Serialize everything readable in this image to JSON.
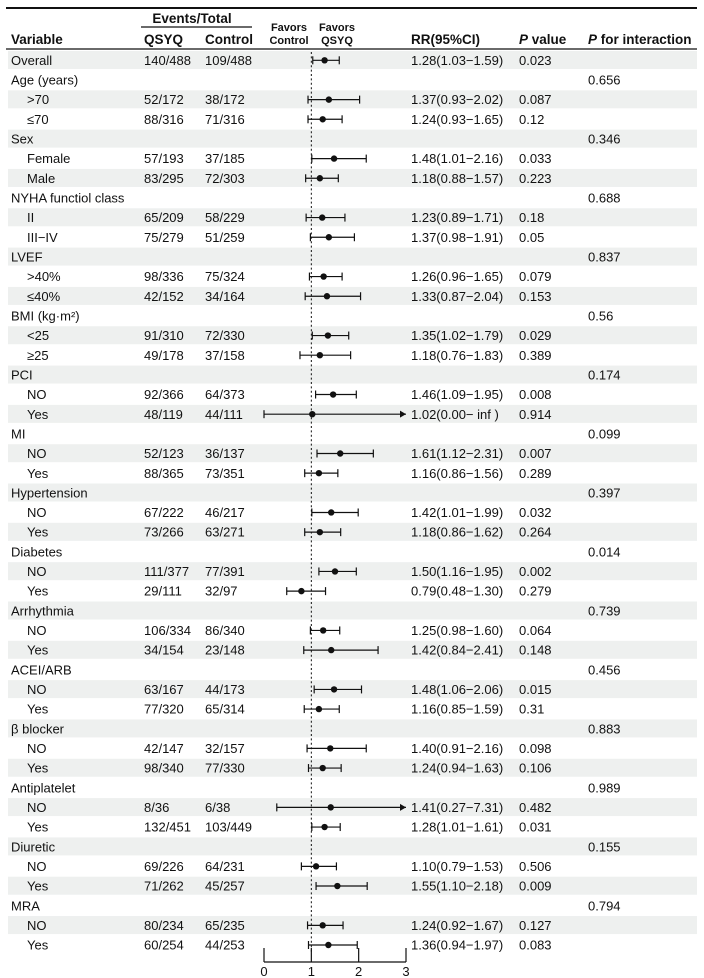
{
  "chart_data": {
    "type": "forest",
    "headers": {
      "events_total": "Events/Total",
      "variable": "Variable",
      "qsyq": "QSYQ",
      "control": "Control",
      "favors_control": [
        "Favors",
        "Control"
      ],
      "favors_qsyq": [
        "Favors",
        "QSYQ"
      ],
      "rr": "RR(95%CI)",
      "p_italic": "P",
      "p_value": " value",
      "p_int_italic": "P",
      "p_int": " for interaction"
    },
    "axis": {
      "min": 0,
      "max": 3,
      "ticks": [
        0,
        1,
        2,
        3
      ],
      "reference": 1
    },
    "rows": [
      {
        "label": "Overall",
        "kind": "sub",
        "indent": false,
        "qsyq": "140/488",
        "control": "109/488",
        "rr": 1.28,
        "lo": 1.03,
        "hi": 1.59,
        "rr_text": "1.28(1.03−1.59)",
        "p": "0.023",
        "p_int": ""
      },
      {
        "label": "Age (years)",
        "kind": "group",
        "p_int": "0.656"
      },
      {
        "label": ">70",
        "kind": "sub",
        "indent": true,
        "qsyq": "52/172",
        "control": "38/172",
        "rr": 1.37,
        "lo": 0.93,
        "hi": 2.02,
        "rr_text": "1.37(0.93−2.02)",
        "p": "0.087",
        "p_int": ""
      },
      {
        "label": "≤70",
        "kind": "sub",
        "indent": true,
        "qsyq": "88/316",
        "control": "71/316",
        "rr": 1.24,
        "lo": 0.93,
        "hi": 1.65,
        "rr_text": "1.24(0.93−1.65)",
        "p": "0.12",
        "p_int": ""
      },
      {
        "label": "Sex",
        "kind": "group",
        "p_int": "0.346"
      },
      {
        "label": "Female",
        "kind": "sub",
        "indent": true,
        "qsyq": "57/193",
        "control": "37/185",
        "rr": 1.48,
        "lo": 1.01,
        "hi": 2.16,
        "rr_text": "1.48(1.01−2.16)",
        "p": "0.033",
        "p_int": ""
      },
      {
        "label": "Male",
        "kind": "sub",
        "indent": true,
        "qsyq": "83/295",
        "control": "72/303",
        "rr": 1.18,
        "lo": 0.88,
        "hi": 1.57,
        "rr_text": "1.18(0.88−1.57)",
        "p": "0.223",
        "p_int": ""
      },
      {
        "label": "NYHA functiol class",
        "kind": "group",
        "p_int": "0.688"
      },
      {
        "label": "II",
        "kind": "sub",
        "indent": true,
        "qsyq": "65/209",
        "control": "58/229",
        "rr": 1.23,
        "lo": 0.89,
        "hi": 1.71,
        "rr_text": "1.23(0.89−1.71)",
        "p": "0.18",
        "p_int": ""
      },
      {
        "label": "III−IV",
        "kind": "sub",
        "indent": true,
        "qsyq": "75/279",
        "control": "51/259",
        "rr": 1.37,
        "lo": 0.98,
        "hi": 1.91,
        "rr_text": "1.37(0.98−1.91)",
        "p": "0.05",
        "p_int": ""
      },
      {
        "label": "LVEF",
        "kind": "group",
        "p_int": "0.837"
      },
      {
        "label": ">40%",
        "kind": "sub",
        "indent": true,
        "qsyq": "98/336",
        "control": "75/324",
        "rr": 1.26,
        "lo": 0.96,
        "hi": 1.65,
        "rr_text": "1.26(0.96−1.65)",
        "p": "0.079",
        "p_int": ""
      },
      {
        "label": "≤40%",
        "kind": "sub",
        "indent": true,
        "qsyq": "42/152",
        "control": "34/164",
        "rr": 1.33,
        "lo": 0.87,
        "hi": 2.04,
        "rr_text": "1.33(0.87−2.04)",
        "p": "0.153",
        "p_int": ""
      },
      {
        "label": "BMI (kg·m²)",
        "kind": "group",
        "p_int": "0.56"
      },
      {
        "label": "<25",
        "kind": "sub",
        "indent": true,
        "qsyq": "91/310",
        "control": "72/330",
        "rr": 1.35,
        "lo": 1.02,
        "hi": 1.79,
        "rr_text": "1.35(1.02−1.79)",
        "p": "0.029",
        "p_int": ""
      },
      {
        "label": "≥25",
        "kind": "sub",
        "indent": true,
        "qsyq": "49/178",
        "control": "37/158",
        "rr": 1.18,
        "lo": 0.76,
        "hi": 1.83,
        "rr_text": "1.18(0.76−1.83)",
        "p": "0.389",
        "p_int": ""
      },
      {
        "label": "PCI",
        "kind": "group",
        "p_int": "0.174"
      },
      {
        "label": "NO",
        "kind": "sub",
        "indent": true,
        "qsyq": "92/366",
        "control": "64/373",
        "rr": 1.46,
        "lo": 1.09,
        "hi": 1.95,
        "rr_text": "1.46(1.09−1.95)",
        "p": "0.008",
        "p_int": ""
      },
      {
        "label": "Yes",
        "kind": "sub",
        "indent": true,
        "qsyq": "48/119",
        "control": "44/111",
        "rr": 1.02,
        "lo": 0.0,
        "hi": "inf",
        "rr_text": "1.02(0.00− inf )",
        "p": "0.914",
        "p_int": ""
      },
      {
        "label": "MI",
        "kind": "group",
        "p_int": "0.099"
      },
      {
        "label": "NO",
        "kind": "sub",
        "indent": true,
        "qsyq": "52/123",
        "control": "36/137",
        "rr": 1.61,
        "lo": 1.12,
        "hi": 2.31,
        "rr_text": "1.61(1.12−2.31)",
        "p": "0.007",
        "p_int": ""
      },
      {
        "label": "Yes",
        "kind": "sub",
        "indent": true,
        "qsyq": "88/365",
        "control": "73/351",
        "rr": 1.16,
        "lo": 0.86,
        "hi": 1.56,
        "rr_text": "1.16(0.86−1.56)",
        "p": "0.289",
        "p_int": ""
      },
      {
        "label": "Hypertension",
        "kind": "group",
        "p_int": "0.397"
      },
      {
        "label": "NO",
        "kind": "sub",
        "indent": true,
        "qsyq": "67/222",
        "control": "46/217",
        "rr": 1.42,
        "lo": 1.01,
        "hi": 1.99,
        "rr_text": "1.42(1.01−1.99)",
        "p": "0.032",
        "p_int": ""
      },
      {
        "label": "Yes",
        "kind": "sub",
        "indent": true,
        "qsyq": "73/266",
        "control": "63/271",
        "rr": 1.18,
        "lo": 0.86,
        "hi": 1.62,
        "rr_text": "1.18(0.86−1.62)",
        "p": "0.264",
        "p_int": ""
      },
      {
        "label": "Diabetes",
        "kind": "group",
        "p_int": "0.014"
      },
      {
        "label": "NO",
        "kind": "sub",
        "indent": true,
        "qsyq": "111/377",
        "control": "77/391",
        "rr": 1.5,
        "lo": 1.16,
        "hi": 1.95,
        "rr_text": "1.50(1.16−1.95)",
        "p": "0.002",
        "p_int": ""
      },
      {
        "label": "Yes",
        "kind": "sub",
        "indent": true,
        "qsyq": "29/111",
        "control": "32/97",
        "rr": 0.79,
        "lo": 0.48,
        "hi": 1.3,
        "rr_text": "0.79(0.48−1.30)",
        "p": "0.279",
        "p_int": ""
      },
      {
        "label": "Arrhythmia",
        "kind": "group",
        "p_int": "0.739"
      },
      {
        "label": "NO",
        "kind": "sub",
        "indent": true,
        "qsyq": "106/334",
        "control": "86/340",
        "rr": 1.25,
        "lo": 0.98,
        "hi": 1.6,
        "rr_text": "1.25(0.98−1.60)",
        "p": "0.064",
        "p_int": ""
      },
      {
        "label": "Yes",
        "kind": "sub",
        "indent": true,
        "qsyq": "34/154",
        "control": "23/148",
        "rr": 1.42,
        "lo": 0.84,
        "hi": 2.41,
        "rr_text": "1.42(0.84−2.41)",
        "p": "0.148",
        "p_int": ""
      },
      {
        "label": "ACEI/ARB",
        "kind": "group",
        "p_int": "0.456"
      },
      {
        "label": "NO",
        "kind": "sub",
        "indent": true,
        "qsyq": "63/167",
        "control": "44/173",
        "rr": 1.48,
        "lo": 1.06,
        "hi": 2.06,
        "rr_text": "1.48(1.06−2.06)",
        "p": "0.015",
        "p_int": ""
      },
      {
        "label": "Yes",
        "kind": "sub",
        "indent": true,
        "qsyq": "77/320",
        "control": "65/314",
        "rr": 1.16,
        "lo": 0.85,
        "hi": 1.59,
        "rr_text": "1.16(0.85−1.59)",
        "p": "0.31",
        "p_int": ""
      },
      {
        "label": "β blocker",
        "kind": "group",
        "p_int": "0.883"
      },
      {
        "label": "NO",
        "kind": "sub",
        "indent": true,
        "qsyq": "42/147",
        "control": "32/157",
        "rr": 1.4,
        "lo": 0.91,
        "hi": 2.16,
        "rr_text": "1.40(0.91−2.16)",
        "p": "0.098",
        "p_int": ""
      },
      {
        "label": "Yes",
        "kind": "sub",
        "indent": true,
        "qsyq": "98/340",
        "control": "77/330",
        "rr": 1.24,
        "lo": 0.94,
        "hi": 1.63,
        "rr_text": "1.24(0.94−1.63)",
        "p": "0.106",
        "p_int": ""
      },
      {
        "label": "Antiplatelet",
        "kind": "group",
        "p_int": "0.989"
      },
      {
        "label": "NO",
        "kind": "sub",
        "indent": true,
        "qsyq": "8/36",
        "control": "6/38",
        "rr": 1.41,
        "lo": 0.27,
        "hi": 7.31,
        "rr_text": "1.41(0.27−7.31)",
        "p": "0.482",
        "p_int": ""
      },
      {
        "label": "Yes",
        "kind": "sub",
        "indent": true,
        "qsyq": "132/451",
        "control": "103/449",
        "rr": 1.28,
        "lo": 1.01,
        "hi": 1.61,
        "rr_text": "1.28(1.01−1.61)",
        "p": "0.031",
        "p_int": ""
      },
      {
        "label": "Diuretic",
        "kind": "group",
        "p_int": "0.155"
      },
      {
        "label": "NO",
        "kind": "sub",
        "indent": true,
        "qsyq": "69/226",
        "control": "64/231",
        "rr": 1.1,
        "lo": 0.79,
        "hi": 1.53,
        "rr_text": "1.10(0.79−1.53)",
        "p": "0.506",
        "p_int": ""
      },
      {
        "label": "Yes",
        "kind": "sub",
        "indent": true,
        "qsyq": "71/262",
        "control": "45/257",
        "rr": 1.55,
        "lo": 1.1,
        "hi": 2.18,
        "rr_text": "1.55(1.10−2.18)",
        "p": "0.009",
        "p_int": ""
      },
      {
        "label": "MRA",
        "kind": "group",
        "p_int": "0.794"
      },
      {
        "label": "NO",
        "kind": "sub",
        "indent": true,
        "qsyq": "80/234",
        "control": "65/235",
        "rr": 1.24,
        "lo": 0.92,
        "hi": 1.67,
        "rr_text": "1.24(0.92−1.67)",
        "p": "0.127",
        "p_int": ""
      },
      {
        "label": "Yes",
        "kind": "sub",
        "indent": true,
        "qsyq": "60/254",
        "control": "44/253",
        "rr": 1.36,
        "lo": 0.94,
        "hi": 1.97,
        "rr_text": "1.36(0.94−1.97)",
        "p": "0.083",
        "p_int": ""
      }
    ]
  },
  "colors": {
    "stripe": "#eef0ef",
    "ink": "#111111",
    "background": "#ffffff"
  }
}
